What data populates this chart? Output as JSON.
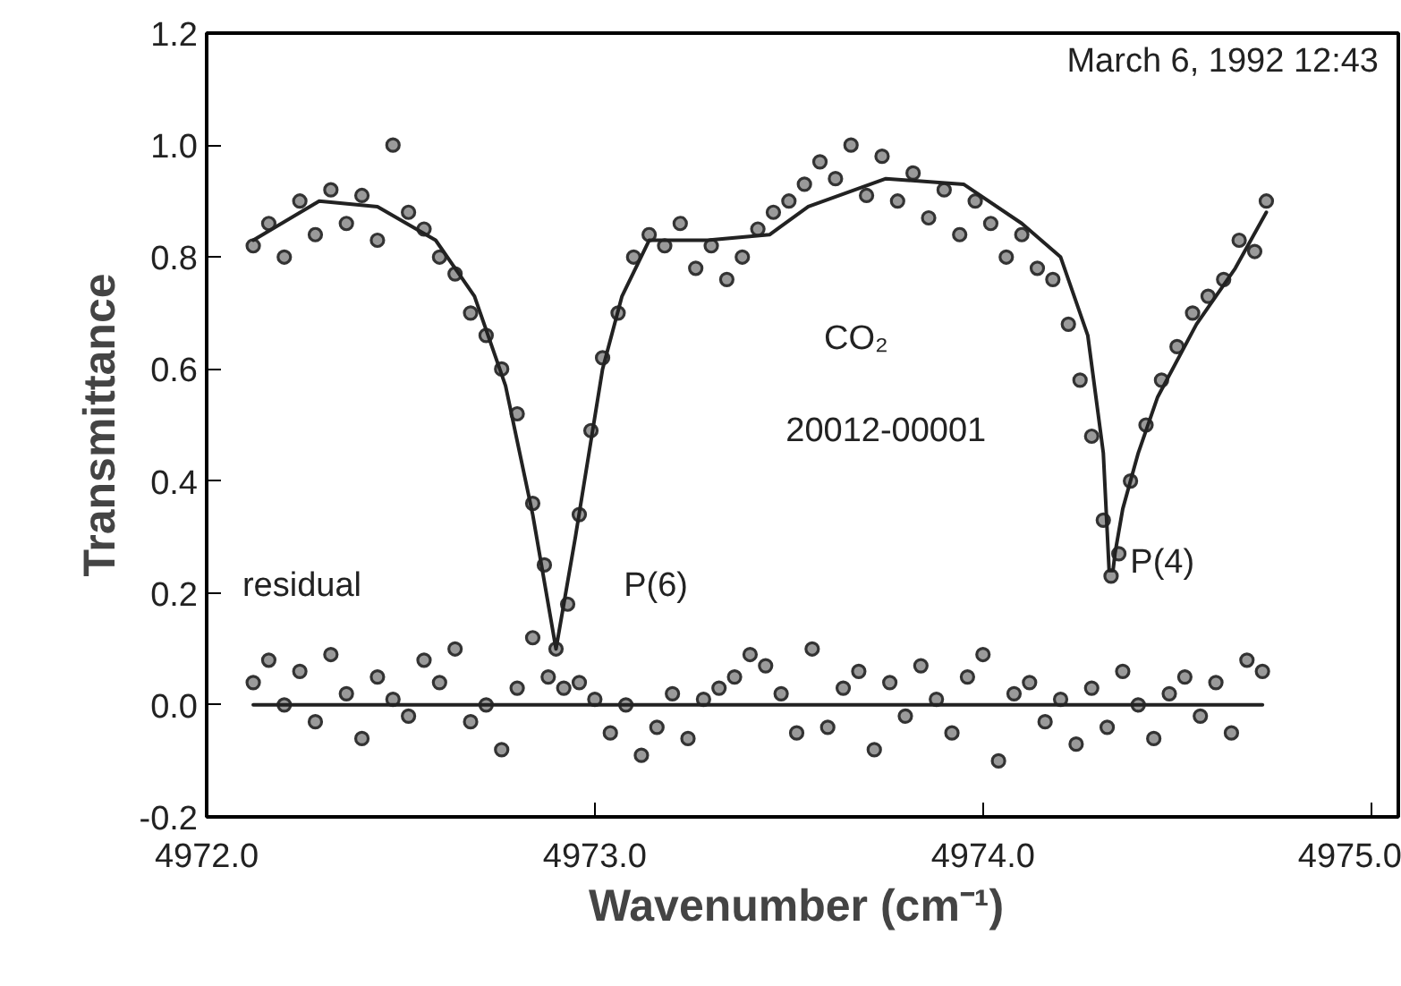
{
  "chart_data": {
    "type": "scatter",
    "xlabel": "Wavenumber  (cm⁻¹)",
    "ylabel": "Transmittance",
    "xlim": [
      4972.0,
      4975.07
    ],
    "ylim": [
      -0.2,
      1.2
    ],
    "xticks": [
      {
        "value": 4972.0,
        "label": "4972.0"
      },
      {
        "value": 4973.0,
        "label": "4973.0"
      },
      {
        "value": 4974.0,
        "label": "4974.0"
      },
      {
        "value": 4975.0,
        "label": "4975.0"
      }
    ],
    "yticks": [
      {
        "value": -0.2,
        "label": "-0.2"
      },
      {
        "value": 0.0,
        "label": "0.0"
      },
      0.2,
      0.4,
      0.6,
      0.8,
      {
        "value": 1.0,
        "label": "1.0"
      },
      1.2
    ],
    "grid": false,
    "series": [
      {
        "marker": "circle",
        "color": "#333333",
        "x": [
          4972.12,
          4972.16,
          4972.2,
          4972.24,
          4972.28,
          4972.32,
          4972.36,
          4972.4,
          4972.44,
          4972.48,
          4972.52,
          4972.56,
          4972.6,
          4972.64,
          4972.68,
          4972.72,
          4972.76,
          4972.8,
          4972.84,
          4972.87,
          4972.9,
          4972.93,
          4972.96,
          4972.99,
          4973.02,
          4973.06,
          4973.1,
          4973.14,
          4973.18,
          4973.22,
          4973.26,
          4973.3,
          4973.34,
          4973.38,
          4973.42,
          4973.46,
          4973.5,
          4973.54,
          4973.58,
          4973.62,
          4973.66,
          4973.7,
          4973.74,
          4973.78,
          4973.82,
          4973.86,
          4973.9,
          4973.94,
          4973.98,
          4974.02,
          4974.06,
          4974.1,
          4974.14,
          4974.18,
          4974.22,
          4974.25,
          4974.28,
          4974.31,
          4974.33,
          4974.35,
          4974.38,
          4974.42,
          4974.46,
          4974.5,
          4974.54,
          4974.58,
          4974.62,
          4974.66,
          4974.7,
          4974.73
        ],
        "values": [
          0.82,
          0.86,
          0.8,
          0.9,
          0.84,
          0.92,
          0.86,
          0.91,
          0.83,
          1.0,
          0.88,
          0.85,
          0.8,
          0.77,
          0.7,
          0.66,
          0.6,
          0.52,
          0.36,
          0.25,
          0.1,
          0.18,
          0.34,
          0.49,
          0.62,
          0.7,
          0.8,
          0.84,
          0.82,
          0.86,
          0.78,
          0.82,
          0.76,
          0.8,
          0.85,
          0.88,
          0.9,
          0.93,
          0.97,
          0.94,
          1.0,
          0.91,
          0.98,
          0.9,
          0.95,
          0.87,
          0.92,
          0.84,
          0.9,
          0.86,
          0.8,
          0.84,
          0.78,
          0.76,
          0.68,
          0.58,
          0.48,
          0.33,
          0.23,
          0.27,
          0.4,
          0.5,
          0.58,
          0.64,
          0.7,
          0.73,
          0.76,
          0.83,
          0.81,
          0.9
        ]
      },
      {
        "type": "line",
        "color": "#222222",
        "x": [
          4972.12,
          4972.29,
          4972.44,
          4972.59,
          4972.69,
          4972.77,
          4972.84,
          4972.9,
          4972.95,
          4973.02,
          4973.07,
          4973.14,
          4973.29,
          4973.45,
          4973.55,
          4973.75,
          4973.95,
          4974.1,
          4974.2,
          4974.27,
          4974.31,
          4974.32,
          4974.325,
          4974.335,
          4974.34,
          4974.36,
          4974.4,
          4974.45,
          4974.55,
          4974.65,
          4974.73
        ],
        "values": [
          0.83,
          0.9,
          0.89,
          0.83,
          0.73,
          0.57,
          0.34,
          0.1,
          0.3,
          0.6,
          0.73,
          0.83,
          0.83,
          0.84,
          0.89,
          0.94,
          0.93,
          0.86,
          0.8,
          0.66,
          0.45,
          0.31,
          0.24,
          0.24,
          0.27,
          0.35,
          0.45,
          0.55,
          0.68,
          0.78,
          0.88
        ]
      },
      {
        "marker": "circle",
        "color": "#333333",
        "x": [
          4972.12,
          4972.16,
          4972.2,
          4972.24,
          4972.28,
          4972.32,
          4972.36,
          4972.4,
          4972.44,
          4972.48,
          4972.52,
          4972.56,
          4972.6,
          4972.64,
          4972.68,
          4972.72,
          4972.76,
          4972.8,
          4972.84,
          4972.88,
          4972.92,
          4972.96,
          4973.0,
          4973.04,
          4973.08,
          4973.12,
          4973.16,
          4973.2,
          4973.24,
          4973.28,
          4973.32,
          4973.36,
          4973.4,
          4973.44,
          4973.48,
          4973.52,
          4973.56,
          4973.6,
          4973.64,
          4973.68,
          4973.72,
          4973.76,
          4973.8,
          4973.84,
          4973.88,
          4973.92,
          4973.96,
          4974.0,
          4974.04,
          4974.08,
          4974.12,
          4974.16,
          4974.2,
          4974.24,
          4974.28,
          4974.32,
          4974.36,
          4974.4,
          4974.44,
          4974.48,
          4974.52,
          4974.56,
          4974.6,
          4974.64,
          4974.68,
          4974.72
        ],
        "values": [
          0.04,
          0.08,
          0.0,
          0.06,
          -0.03,
          0.09,
          0.02,
          -0.06,
          0.05,
          0.01,
          -0.02,
          0.08,
          0.04,
          0.1,
          -0.03,
          0.0,
          -0.08,
          0.03,
          0.12,
          0.05,
          0.03,
          0.04,
          0.01,
          -0.05,
          0.0,
          -0.09,
          -0.04,
          0.02,
          -0.06,
          0.01,
          0.03,
          0.05,
          0.09,
          0.07,
          0.02,
          -0.05,
          0.1,
          -0.04,
          0.03,
          0.06,
          -0.08,
          0.04,
          -0.02,
          0.07,
          0.01,
          -0.05,
          0.05,
          0.09,
          -0.1,
          0.02,
          0.04,
          -0.03,
          0.01,
          -0.07,
          0.03,
          -0.04,
          0.06,
          0.0,
          -0.06,
          0.02,
          0.05,
          -0.02,
          0.04,
          -0.05,
          0.08,
          0.06
        ]
      },
      {
        "type": "line",
        "color": "#222222",
        "x": [
          4972.12,
          4974.72
        ],
        "values": [
          0.0,
          0.0
        ]
      }
    ],
    "annotations": [
      "March 6, 1992 12:43",
      "CO₂",
      "20012-00001",
      "P(6)",
      "P(4)",
      "residual"
    ]
  }
}
